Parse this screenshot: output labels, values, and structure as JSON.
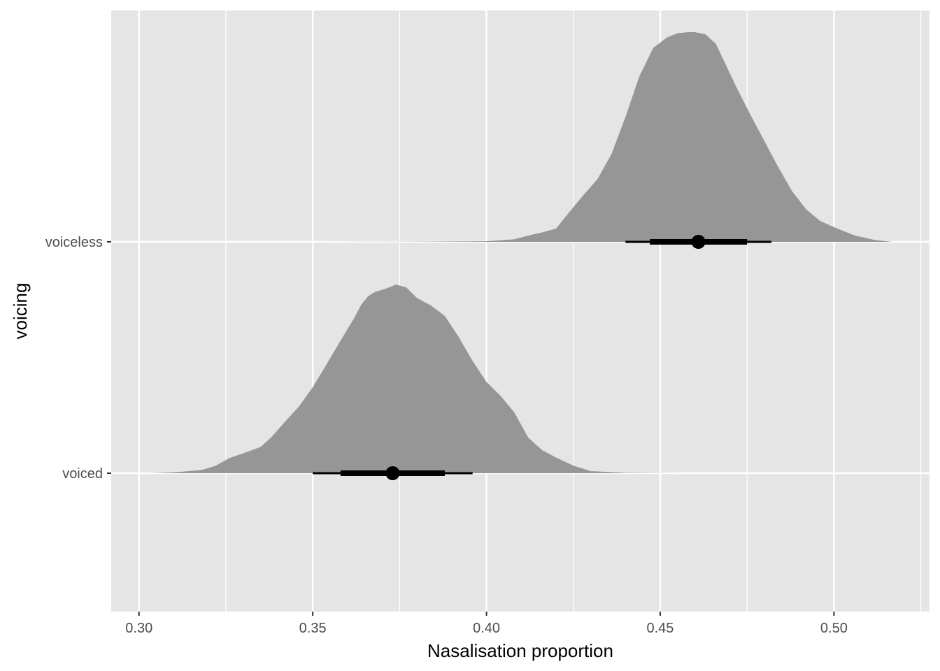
{
  "chart_data": {
    "type": "density",
    "xlabel": "Nasalisation proportion",
    "ylabel": "voicing",
    "xlim": [
      0.292,
      0.5275
    ],
    "x_ticks": [
      "0.30",
      "0.35",
      "0.40",
      "0.45",
      "0.50"
    ],
    "x_tick_values": [
      0.3,
      0.35,
      0.4,
      0.45,
      0.5
    ],
    "x_minor_values": [
      0.325,
      0.375,
      0.425,
      0.475,
      0.525
    ],
    "categories": [
      "voiced",
      "voiceless"
    ],
    "grid": true,
    "legend": "none",
    "series": [
      {
        "category": "voiced",
        "density": {
          "x": [
            0.303,
            0.31,
            0.318,
            0.322,
            0.326,
            0.33,
            0.335,
            0.338,
            0.342,
            0.346,
            0.35,
            0.354,
            0.358,
            0.362,
            0.364,
            0.366,
            0.368,
            0.371,
            0.374,
            0.377,
            0.38,
            0.384,
            0.388,
            0.392,
            0.396,
            0.4,
            0.404,
            0.408,
            0.412,
            0.416,
            0.42,
            0.425,
            0.43,
            0.44,
            0.456
          ],
          "y": [
            0.0,
            0.004,
            0.015,
            0.035,
            0.072,
            0.095,
            0.125,
            0.17,
            0.245,
            0.318,
            0.41,
            0.52,
            0.632,
            0.742,
            0.805,
            0.845,
            0.865,
            0.88,
            0.9,
            0.885,
            0.835,
            0.8,
            0.75,
            0.65,
            0.535,
            0.435,
            0.37,
            0.29,
            0.17,
            0.11,
            0.075,
            0.036,
            0.01,
            0.002,
            0.0
          ]
        },
        "point": 0.373,
        "inner_interval": [
          0.358,
          0.388
        ],
        "outer_interval": [
          0.35,
          0.396
        ]
      },
      {
        "category": "voiceless",
        "density": {
          "x": [
            0.352,
            0.38,
            0.4,
            0.408,
            0.412,
            0.416,
            0.42,
            0.424,
            0.428,
            0.432,
            0.436,
            0.44,
            0.444,
            0.448,
            0.452,
            0.455,
            0.458,
            0.46,
            0.463,
            0.466,
            0.469,
            0.472,
            0.476,
            0.48,
            0.484,
            0.488,
            0.492,
            0.496,
            0.5,
            0.506,
            0.512,
            0.517
          ],
          "y": [
            0.0,
            0.001,
            0.003,
            0.012,
            0.03,
            0.045,
            0.063,
            0.145,
            0.225,
            0.3,
            0.42,
            0.596,
            0.79,
            0.925,
            0.975,
            0.995,
            1.0,
            1.0,
            0.99,
            0.945,
            0.84,
            0.735,
            0.605,
            0.48,
            0.355,
            0.24,
            0.155,
            0.1,
            0.07,
            0.03,
            0.008,
            0.0
          ]
        },
        "point": 0.461,
        "inner_interval": [
          0.447,
          0.475
        ],
        "outer_interval": [
          0.44,
          0.482
        ]
      }
    ]
  }
}
